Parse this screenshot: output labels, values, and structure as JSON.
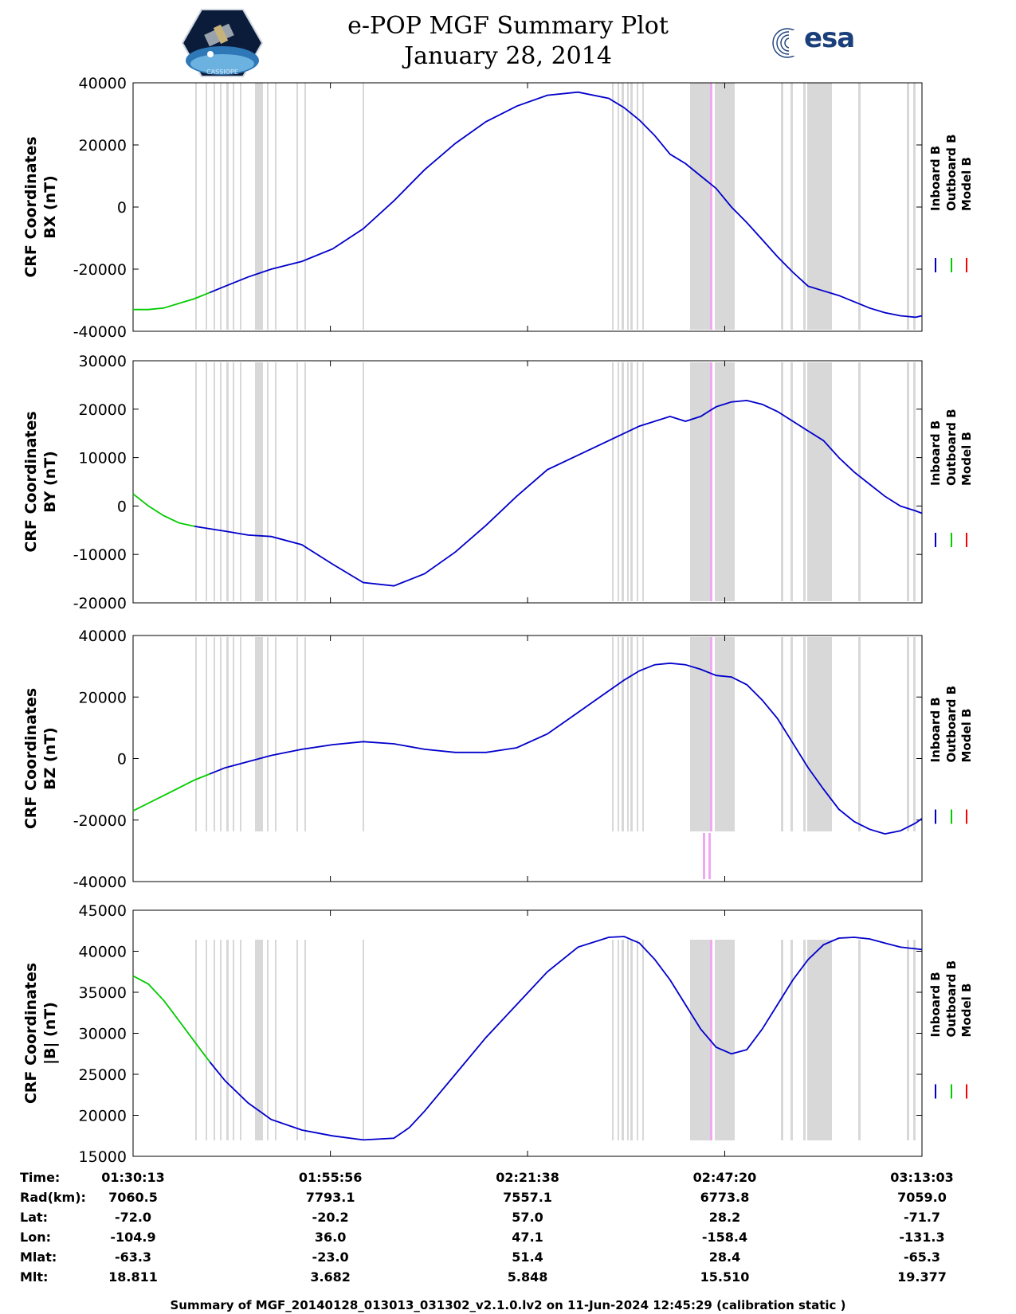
{
  "header": {
    "title_line1": "e-POP MGF Summary Plot",
    "title_line2": "January 28, 2014",
    "left_logo_text": "CASSIOPE",
    "right_logo_text": "esa"
  },
  "colors": {
    "inboard": "#0000cc",
    "outboard": "#00cc00",
    "model": "#ff0000",
    "gap": "#d8d8d8",
    "marker": "#f0a8f0"
  },
  "legend": [
    "Inboard B",
    "Outboard B",
    "Model B"
  ],
  "x_axis": {
    "ticks": [
      "01:30:13",
      "01:55:56",
      "02:21:38",
      "02:47:20",
      "03:13:03"
    ],
    "tick_minutes": [
      0,
      25.72,
      51.42,
      77.12,
      102.83
    ]
  },
  "ephemeris": {
    "rows": [
      {
        "label": "Time:",
        "values": [
          "01:30:13",
          "01:55:56",
          "02:21:38",
          "02:47:20",
          "03:13:03"
        ]
      },
      {
        "label": "Rad(km):",
        "values": [
          "7060.5",
          "7793.1",
          "7557.1",
          "6773.8",
          "7059.0"
        ]
      },
      {
        "label": "Lat:",
        "values": [
          "-72.0",
          "-20.2",
          "57.0",
          "28.2",
          "-71.7"
        ]
      },
      {
        "label": "Lon:",
        "values": [
          "-104.9",
          "36.0",
          "47.1",
          "-158.4",
          "-131.3"
        ]
      },
      {
        "label": "Mlat:",
        "values": [
          "-63.3",
          "-23.0",
          "51.4",
          "28.4",
          "-65.3"
        ]
      },
      {
        "label": "Mlt:",
        "values": [
          "18.811",
          "3.682",
          "5.848",
          "15.510",
          "19.377"
        ]
      }
    ]
  },
  "footer": "Summary of MGF_20140128_013013_031302_v2.1.0.lv2 on 11-Jun-2024 12:45:29 (calibration static )",
  "chart_data": [
    {
      "type": "line",
      "ylabel_line1": "CRF Coordinates",
      "ylabel_line2": "BX (nT)",
      "ylim": [
        -40000,
        40000
      ],
      "yticks": [
        -40000,
        -20000,
        0,
        20000,
        40000
      ],
      "ytick_labels": [
        "-40000",
        "-20000",
        "0",
        "20000",
        "40000"
      ],
      "outboard_until": 11.0,
      "x": [
        0,
        2,
        4,
        6,
        8,
        10,
        12,
        15,
        18,
        22,
        26,
        30,
        34,
        38,
        42,
        46,
        50,
        54,
        58,
        62,
        64,
        66,
        68,
        70,
        72,
        74,
        76,
        77,
        78,
        80,
        82,
        84,
        86,
        88,
        90,
        92,
        94,
        96,
        98,
        100,
        102,
        102.83
      ],
      "y": [
        -33000,
        -33000,
        -32500,
        -31000,
        -29500,
        -27500,
        -25500,
        -22500,
        -20000,
        -17500,
        -13500,
        -7000,
        2000,
        12000,
        20500,
        27500,
        32500,
        36000,
        37000,
        35000,
        32000,
        28000,
        23000,
        17000,
        14000,
        10000,
        6000,
        3000,
        0,
        -5000,
        -10500,
        -16000,
        -21000,
        -25500,
        -27000,
        -28500,
        -30500,
        -32500,
        -34000,
        -35000,
        -35500,
        -35000
      ]
    },
    {
      "type": "line",
      "ylabel_line1": "CRF Coordinates",
      "ylabel_line2": "BY (nT)",
      "ylim": [
        -20000,
        30000
      ],
      "yticks": [
        -20000,
        -10000,
        0,
        10000,
        20000,
        30000
      ],
      "ytick_labels": [
        "-20000",
        "-10000",
        "0",
        "10000",
        "20000",
        "30000"
      ],
      "outboard_until": 9.5,
      "x": [
        0,
        2,
        4,
        6,
        8,
        10,
        12,
        15,
        18,
        22,
        26,
        30,
        34,
        38,
        42,
        46,
        50,
        54,
        58,
        62,
        66,
        70,
        72,
        74,
        75,
        76,
        78,
        80,
        82,
        84,
        86,
        88,
        90,
        92,
        94,
        96,
        98,
        100,
        102,
        102.83
      ],
      "y": [
        2500,
        0,
        -2000,
        -3500,
        -4200,
        -4700,
        -5200,
        -6000,
        -6300,
        -8000,
        -12000,
        -15800,
        -16500,
        -14000,
        -9500,
        -4000,
        2000,
        7500,
        10500,
        13500,
        16500,
        18500,
        17500,
        18500,
        19500,
        20500,
        21500,
        21800,
        21000,
        19500,
        17500,
        15500,
        13500,
        10000,
        7000,
        4500,
        2000,
        0,
        -1000,
        -1500
      ]
    },
    {
      "type": "line",
      "ylabel_line1": "CRF Coordinates",
      "ylabel_line2": "BZ (nT)",
      "ylim": [
        -40000,
        40000
      ],
      "yticks": [
        -40000,
        -20000,
        0,
        20000,
        40000
      ],
      "ytick_labels": [
        "-40000",
        "-20000",
        "0",
        "20000",
        "40000"
      ],
      "outboard_until": 10.0,
      "x": [
        0,
        2,
        4,
        6,
        8,
        10,
        12,
        15,
        18,
        22,
        26,
        30,
        34,
        38,
        42,
        46,
        50,
        54,
        58,
        62,
        64,
        66,
        68,
        70,
        72,
        74,
        76,
        78,
        80,
        82,
        84,
        86,
        88,
        90,
        92,
        94,
        96,
        98,
        100,
        102,
        102.83
      ],
      "y": [
        -17000,
        -14500,
        -12000,
        -9500,
        -7000,
        -5000,
        -3000,
        -1000,
        1000,
        3000,
        4500,
        5500,
        4800,
        3000,
        2000,
        2000,
        3500,
        8000,
        15000,
        22000,
        25500,
        28500,
        30500,
        31000,
        30500,
        29000,
        27000,
        26500,
        24000,
        19000,
        13000,
        5000,
        -3000,
        -10000,
        -16500,
        -20500,
        -23000,
        -24500,
        -23500,
        -21000,
        -19500
      ]
    },
    {
      "type": "line",
      "ylabel_line1": "CRF Coordinates",
      "ylabel_line2": "|B| (nT)",
      "ylim": [
        15000,
        45000
      ],
      "yticks": [
        15000,
        20000,
        25000,
        30000,
        35000,
        40000,
        45000
      ],
      "ytick_labels": [
        "15000",
        "20000",
        "25000",
        "30000",
        "35000",
        "40000",
        "45000"
      ],
      "outboard_until": 11.0,
      "x": [
        0,
        2,
        4,
        6,
        8,
        10,
        12,
        15,
        18,
        22,
        26,
        30,
        34,
        36,
        38,
        42,
        46,
        50,
        54,
        58,
        62,
        64,
        66,
        68,
        70,
        72,
        74,
        76,
        78,
        80,
        82,
        84,
        86,
        88,
        90,
        92,
        94,
        96,
        98,
        100,
        102,
        102.83
      ],
      "y": [
        37000,
        36000,
        34000,
        31500,
        29000,
        26500,
        24200,
        21500,
        19500,
        18200,
        17500,
        17000,
        17200,
        18500,
        20500,
        25000,
        29500,
        33500,
        37500,
        40500,
        41700,
        41800,
        41000,
        39000,
        36500,
        33500,
        30500,
        28300,
        27500,
        28000,
        30500,
        33500,
        36500,
        39000,
        40800,
        41600,
        41700,
        41500,
        41000,
        40500,
        40300,
        40200
      ]
    }
  ]
}
